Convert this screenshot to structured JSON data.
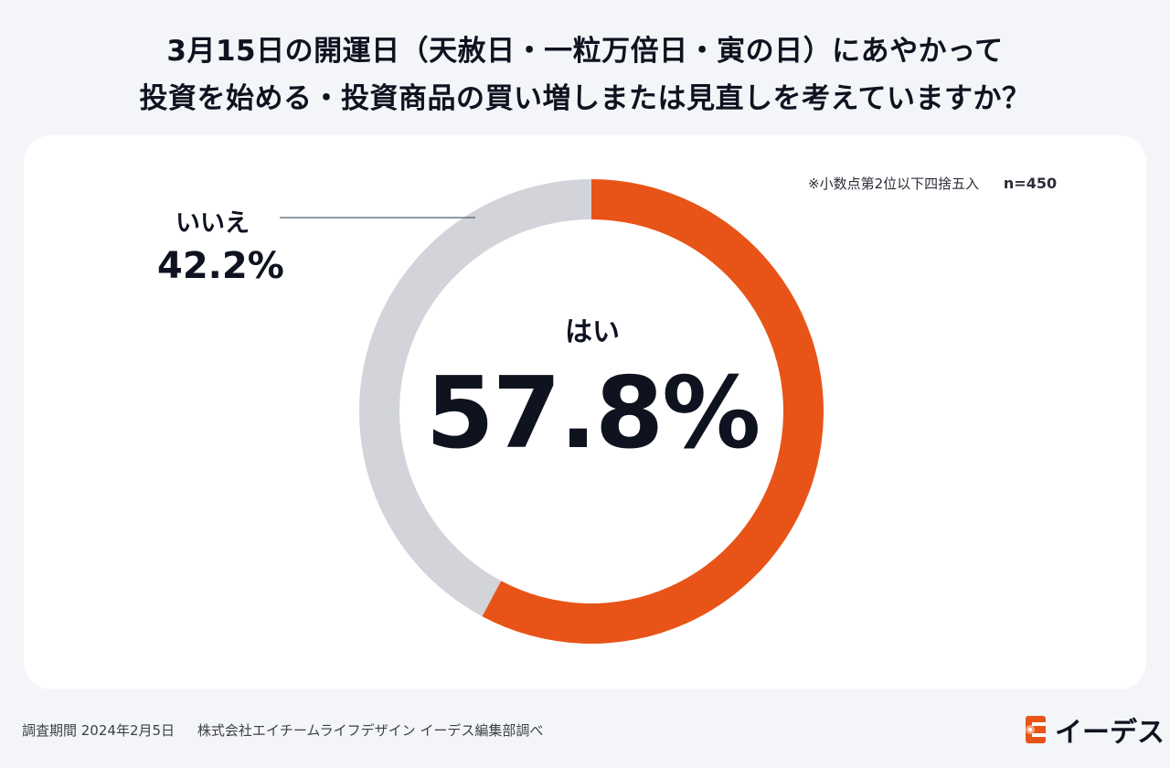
{
  "title": {
    "line1": "3月15日の開運日（天赦日・一粒万倍日・寅の日）にあやかって",
    "line2": "投資を始める・投資商品の買い増しまたは見直しを考えていますか？"
  },
  "note": {
    "rounding": "※小数点第2位以下四捨五入",
    "sample": "n=450"
  },
  "chart_data": {
    "type": "pie",
    "title": "3月15日の開運日（天赦日・一粒万倍日・寅の日）にあやかって投資を始める・投資商品の買い増しまたは見直しを考えていますか？",
    "slices": [
      {
        "label": "はい",
        "value": 57.8,
        "display": "57.8%",
        "color": "#e85418"
      },
      {
        "label": "いいえ",
        "value": 42.2,
        "display": "42.2%",
        "color": "#d2d4da"
      }
    ],
    "style": "donut"
  },
  "footer": {
    "period": "調査期間 2024年2月5日",
    "org": "株式会社エイチームライフデザイン イーデス編集部調べ"
  },
  "logo": {
    "text": "イーデス",
    "icon": "edes-logo-icon",
    "color": "#e85418"
  }
}
